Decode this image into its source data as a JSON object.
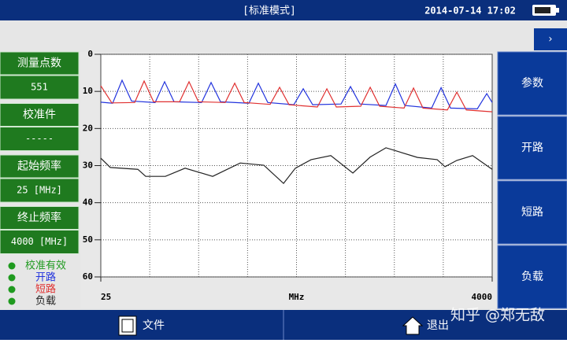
{
  "header": {
    "title": "[标准模式]",
    "datetime": "2014-07-14 17:02"
  },
  "left_panel": [
    {
      "label": "测量点数",
      "value": "551"
    },
    {
      "label": "校准件",
      "value": "-----"
    },
    {
      "label": "起始频率",
      "value": "25 [MHz]"
    },
    {
      "label": "终止频率",
      "value": "4000 [MHz]"
    }
  ],
  "status": "校准有效",
  "right_menu": [
    "参数",
    "开路",
    "短路",
    "负载"
  ],
  "footer": {
    "file": "文件",
    "exit": "退出"
  },
  "watermark": "知乎 @郑无敌",
  "chart_data": {
    "type": "line",
    "x_label": "MHz",
    "xlim": [
      25,
      4000
    ],
    "xticks": [
      25,
      4000
    ],
    "ylim": [
      60,
      0
    ],
    "yticks": [
      0,
      10,
      20,
      30,
      40,
      50,
      60
    ],
    "grid": true,
    "x_grid_divisions": 8,
    "series": [
      {
        "name": "开路",
        "color": "#2233dd",
        "x": [
          25,
          145,
          241,
          337,
          577,
          673,
          769,
          1049,
          1145,
          1241,
          1529,
          1625,
          1721,
          1985,
          2081,
          2177,
          2465,
          2561,
          2657,
          2921,
          3017,
          3113,
          3385,
          3481,
          3577,
          3849,
          3945,
          4000
        ],
        "values": [
          12.9,
          13.2,
          7,
          12.6,
          13,
          7.4,
          12.8,
          13,
          7.6,
          12.8,
          13.2,
          7.8,
          13,
          13.6,
          9.3,
          13.6,
          13.4,
          8.7,
          13.4,
          13.8,
          8,
          13.8,
          14.5,
          9,
          14.5,
          14.7,
          10.6,
          13
        ]
      },
      {
        "name": "短路",
        "color": "#e03030",
        "x": [
          25,
          137,
          369,
          465,
          561,
          825,
          921,
          1017,
          1289,
          1385,
          1481,
          1745,
          1841,
          1937,
          2225,
          2321,
          2417,
          2665,
          2761,
          2857,
          3105,
          3201,
          3297,
          3545,
          3641,
          3737,
          4000
        ],
        "values": [
          8.5,
          13.1,
          13,
          7.2,
          12.8,
          12.8,
          7.4,
          12.8,
          13,
          7.8,
          13,
          13.5,
          8.9,
          13.6,
          14.2,
          9.3,
          14.2,
          14,
          8.9,
          14,
          14.5,
          9.1,
          14.5,
          15,
          10.2,
          15,
          15.5
        ]
      },
      {
        "name": "负载",
        "color": "#222222",
        "x": [
          25,
          121,
          401,
          481,
          681,
          881,
          1161,
          1441,
          1681,
          1881,
          2001,
          2161,
          2361,
          2585,
          2761,
          2921,
          3241,
          3441,
          3521,
          3641,
          3801,
          4000
        ],
        "values": [
          28,
          30.5,
          31,
          32.9,
          32.9,
          30.7,
          32.9,
          29.3,
          29.9,
          34.8,
          30.7,
          28.4,
          27.3,
          32,
          27.7,
          25.2,
          27.8,
          28.4,
          30.3,
          28.6,
          27.3,
          31
        ]
      }
    ]
  }
}
